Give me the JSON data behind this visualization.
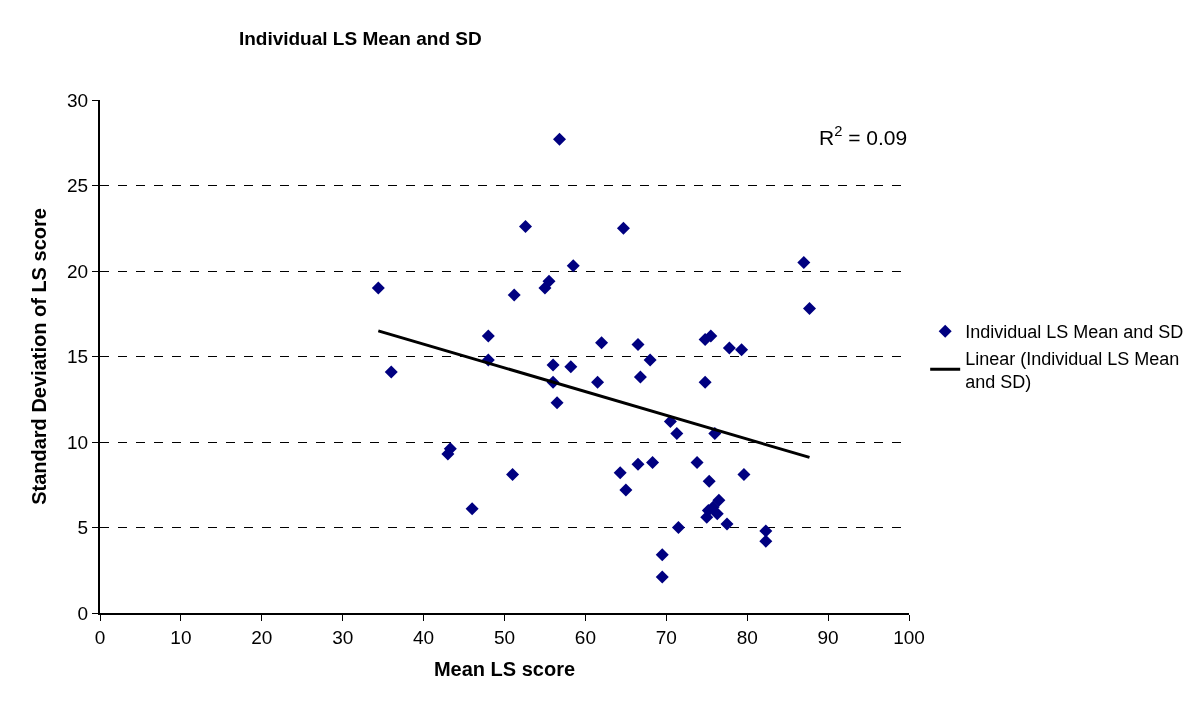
{
  "chart_data": {
    "type": "scatter",
    "title": "Individual LS Mean and SD",
    "xlabel": "Mean LS score",
    "ylabel": "Standard Deviation of LS score",
    "xlim": [
      0,
      100
    ],
    "xticks": [
      0,
      10,
      20,
      30,
      40,
      50,
      60,
      70,
      80,
      90,
      100
    ],
    "ylim": [
      0,
      30
    ],
    "yticks": [
      0,
      5,
      10,
      15,
      20,
      25,
      30
    ],
    "grid": "y",
    "legend": "right",
    "marker": "diamond",
    "annotations": [
      "R$^{2}$ = 0.09"
    ],
    "series": [
      {
        "name": "Individual LS Mean and SD",
        "color": "#000080",
        "x": [
          34.4,
          36,
          43,
          43.3,
          46,
          48,
          48,
          51,
          51.2,
          52.6,
          55,
          55.5,
          56,
          56,
          56.5,
          56.8,
          58.2,
          58.5,
          61.5,
          62,
          64.3,
          64.7,
          65,
          66.5,
          66.5,
          66.8,
          68,
          68.3,
          69.5,
          69.5,
          70.5,
          71.3,
          71.5,
          73.8,
          74.8,
          74.8,
          75,
          75.2,
          75.3,
          75.5,
          75.8,
          76,
          76.3,
          76.5,
          77.5,
          77.8,
          79.3,
          79.6,
          82.3,
          82.3,
          87,
          87.7
        ],
        "values": [
          19.0,
          14.1,
          9.3,
          9.6,
          6.1,
          16.2,
          14.8,
          8.1,
          18.6,
          22.6,
          19.0,
          19.4,
          13.5,
          14.5,
          12.3,
          27.7,
          14.4,
          20.3,
          13.5,
          15.8,
          8.2,
          22.5,
          7.2,
          8.7,
          15.7,
          13.8,
          14.8,
          8.8,
          3.4,
          2.1,
          11.2,
          10.5,
          5.0,
          8.8,
          13.5,
          16.0,
          5.6,
          6.0,
          7.7,
          16.2,
          6.2,
          10.5,
          5.8,
          6.6,
          5.2,
          15.5,
          15.4,
          8.1,
          4.8,
          4.2,
          20.5,
          17.8
        ]
      },
      {
        "name": "Linear (Individual LS Mean and SD)",
        "color": "#000000",
        "type": "line",
        "marker": "none",
        "line_style": "solid",
        "x": [
          34.4,
          87.7
        ],
        "values": [
          16.5,
          9.1
        ]
      }
    ]
  }
}
